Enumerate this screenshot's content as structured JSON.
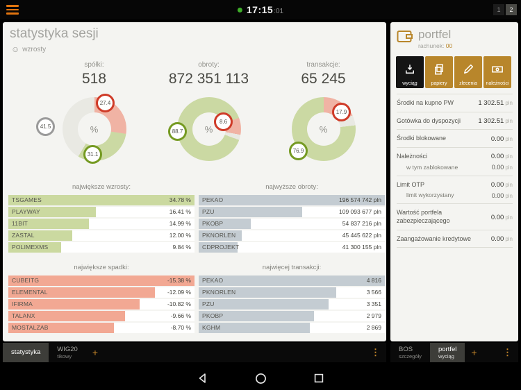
{
  "top_bar": {
    "time": "17:15",
    "seconds": ":01",
    "pages": [
      "1",
      "2"
    ],
    "active_page": "2"
  },
  "colors": {
    "accent_orange": "#b8862b",
    "hamburger_orange": "#e2750f",
    "status_green": "#3fae2a",
    "gain_green": "#759a22",
    "loss_red": "#cf3b28",
    "bar_green": "#cbd9a0",
    "bar_gray": "#c4ccd2",
    "bar_red": "#f2a893"
  },
  "session_panel": {
    "title": "statystyka sesji",
    "subtitle": "wzrosty",
    "smiley_icon": "☺"
  },
  "chart_data": [
    {
      "type": "pie",
      "label": "spółki:",
      "total": "518",
      "center_label": "%",
      "segments": [
        {
          "value": 27.4,
          "display": "27.4",
          "color": "#f0b3a4",
          "badge_color": "#cf3b28"
        },
        {
          "value": 31.1,
          "display": "31.1",
          "color": "#cbd9a3",
          "badge_color": "#759a22"
        },
        {
          "value": 41.5,
          "display": "41.5",
          "color": "#e9e9e3",
          "badge_color": "#9a9a9a"
        }
      ]
    },
    {
      "type": "pie",
      "label": "obroty:",
      "total": "872 351 113",
      "center_label": "%",
      "segments": [
        {
          "value": 88.7,
          "display": "88.7",
          "color": "#cbd9a3",
          "badge_color": "#759a22"
        },
        {
          "value": 8.6,
          "display": "8.6",
          "color": "#f0b3a4",
          "badge_color": "#cf3b28"
        },
        {
          "value": 2.7,
          "display": "",
          "color": "#e9e9e3",
          "badge_color": ""
        }
      ]
    },
    {
      "type": "pie",
      "label": "transakcje:",
      "total": "65 245",
      "center_label": "%",
      "segments": [
        {
          "value": 17.9,
          "display": "17.9",
          "color": "#f0b3a4",
          "badge_color": "#cf3b28"
        },
        {
          "value": 5.2,
          "display": "",
          "color": "#e9e9e3",
          "badge_color": ""
        },
        {
          "value": 76.9,
          "display": "76.9",
          "color": "#cbd9a3",
          "badge_color": "#759a22"
        }
      ]
    },
    {
      "type": "bar",
      "title": "największe wzrosty:",
      "bar_color": "#cbd9a0",
      "items": [
        {
          "name": "TSGAMES",
          "value": 34.78,
          "label": "34.78 %"
        },
        {
          "name": "PLAYWAY",
          "value": 16.41,
          "label": "16.41 %"
        },
        {
          "name": "11BIT",
          "value": 14.99,
          "label": "14.99 %"
        },
        {
          "name": "ZASTAL",
          "value": 12.0,
          "label": "12.00 %"
        },
        {
          "name": "POLIMEXMS",
          "value": 9.84,
          "label": "9.84 %"
        }
      ]
    },
    {
      "type": "bar",
      "title": "najwyższe obroty:",
      "bar_color": "#c4ccd2",
      "items": [
        {
          "name": "PEKAO",
          "value": 196574742,
          "label": "196 574 742 pln"
        },
        {
          "name": "PZU",
          "value": 109093677,
          "label": "109 093 677 pln"
        },
        {
          "name": "PKOBP",
          "value": 54837216,
          "label": "54 837 216 pln"
        },
        {
          "name": "PKNORLEN",
          "value": 45445622,
          "label": "45 445 622 pln"
        },
        {
          "name": "CDPROJEKT",
          "value": 41300155,
          "label": "41 300 155 pln"
        }
      ]
    },
    {
      "type": "bar",
      "title": "największe spadki:",
      "bar_color": "#f2a893",
      "items": [
        {
          "name": "CUBEITG",
          "value": 15.38,
          "label": "-15.38 %"
        },
        {
          "name": "ELEMENTAL",
          "value": 12.09,
          "label": "-12.09 %"
        },
        {
          "name": "IFIRMA",
          "value": 10.82,
          "label": "-10.82 %"
        },
        {
          "name": "TALANX",
          "value": 9.66,
          "label": "-9.66 %"
        },
        {
          "name": "MOSTALZAB",
          "value": 8.7,
          "label": "-8.70 %"
        }
      ]
    },
    {
      "type": "bar",
      "title": "najwięcej transakcji:",
      "bar_color": "#c4ccd2",
      "items": [
        {
          "name": "PEKAO",
          "value": 4816,
          "label": "4 816"
        },
        {
          "name": "PKNORLEN",
          "value": 3566,
          "label": "3 566"
        },
        {
          "name": "PZU",
          "value": 3351,
          "label": "3 351"
        },
        {
          "name": "PKOBP",
          "value": 2979,
          "label": "2 979"
        },
        {
          "name": "KGHM",
          "value": 2869,
          "label": "2 869"
        }
      ]
    }
  ],
  "portfolio_panel": {
    "title": "portfel",
    "account_label": "rachunek:",
    "account_value": "00",
    "buttons": [
      {
        "label": "wyciąg",
        "icon": "download-icon",
        "active": true
      },
      {
        "label": "papiery",
        "icon": "documents-icon",
        "active": false
      },
      {
        "label": "zlecenia",
        "icon": "order-pencil-icon",
        "active": false
      },
      {
        "label": "należności",
        "icon": "receivables-icon",
        "active": false
      }
    ],
    "rows": [
      {
        "label": "Środki na kupno PW",
        "value": "1 302.51",
        "unit": "pln"
      },
      {
        "label": "Gotówka do dyspozycji",
        "value": "1 302.51",
        "unit": "pln"
      },
      {
        "label": "Środki blokowane",
        "value": "0.00",
        "unit": "pln"
      },
      {
        "label": "Należności",
        "value": "0.00",
        "unit": "pln",
        "sub_label": "w tym zablokowane",
        "sub_value": "0.00",
        "sub_unit": "pln"
      },
      {
        "label": "Limit OTP",
        "value": "0.00",
        "unit": "pln",
        "sub_label": "limit wykorzystany",
        "sub_value": "0.00",
        "sub_unit": "pln"
      },
      {
        "label": "Wartość portfela zabezpieczającego",
        "value": "0.00",
        "unit": "pln"
      },
      {
        "label": "Zaangażowanie kredytowe",
        "value": "0.00",
        "unit": "pln"
      }
    ]
  },
  "left_tabbar": {
    "tabs": [
      {
        "label": "statystyka",
        "sublabel": "",
        "active": true
      },
      {
        "label": "WIG20",
        "sublabel": "tikowy",
        "active": false
      }
    ],
    "add_label": "+",
    "menu_icon": "⋮"
  },
  "right_tabbar": {
    "tabs": [
      {
        "label": "BOS",
        "sublabel": "szczegóły",
        "active": false
      },
      {
        "label": "portfel",
        "sublabel": "wyciąg",
        "active": true
      }
    ],
    "add_label": "+",
    "menu_icon": "⋮"
  }
}
